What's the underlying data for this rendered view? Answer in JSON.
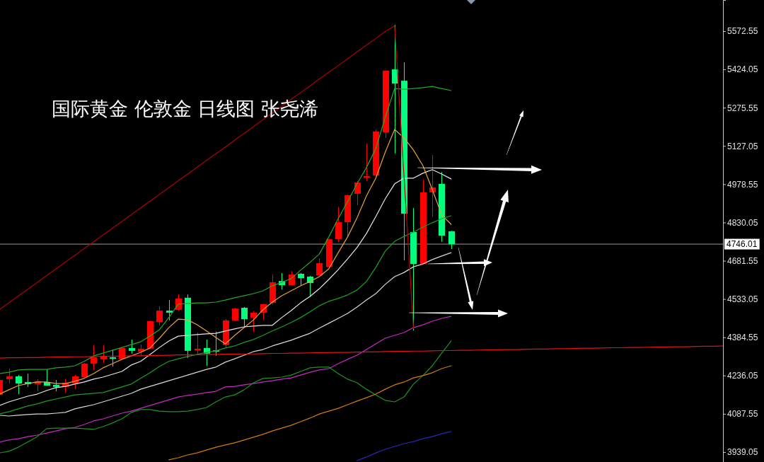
{
  "chart_data": {
    "type": "candlestick",
    "title": "国际黄金 伦敦金 日线图 张尧浠",
    "categories": [
      null,
      null,
      null,
      null,
      null,
      null,
      null,
      null,
      null,
      null,
      null,
      null,
      null,
      null,
      null,
      null,
      null,
      null,
      null,
      null,
      null,
      null,
      null,
      null,
      null,
      null,
      null,
      null,
      null,
      null,
      null,
      null,
      null,
      null,
      null,
      null,
      null,
      null,
      null,
      null,
      null,
      null,
      null,
      null,
      null,
      null,
      null,
      null,
      null,
      null,
      null,
      null,
      null,
      null,
      null,
      null,
      null,
      null,
      null,
      null,
      null,
      null,
      null,
      null,
      null,
      null,
      null,
      null,
      null,
      null,
      null,
      null,
      null,
      null,
      null,
      null,
      null,
      null
    ],
    "ohlc": [
      [
        4161,
        4225,
        4156,
        4219
      ],
      [
        4222,
        4263,
        4205,
        4233
      ],
      [
        4233,
        4238,
        4164,
        4205
      ],
      [
        4211,
        4244,
        4192,
        4203
      ],
      [
        4203,
        4222,
        4175,
        4214
      ],
      [
        4211,
        4260,
        4196,
        4197
      ],
      [
        4200,
        4219,
        4175,
        4192
      ],
      [
        4192,
        4222,
        4170,
        4208
      ],
      [
        4205,
        4238,
        4183,
        4233
      ],
      [
        4230,
        4285,
        4225,
        4282
      ],
      [
        4282,
        4354,
        4258,
        4307
      ],
      [
        4299,
        4354,
        4285,
        4310
      ],
      [
        4307,
        4337,
        4271,
        4301
      ],
      [
        4301,
        4345,
        4299,
        4343
      ],
      [
        4343,
        4376,
        4321,
        4332
      ],
      [
        4329,
        4356,
        4315,
        4340
      ],
      [
        4341,
        4450,
        4340,
        4447
      ],
      [
        4444,
        4505,
        4431,
        4488
      ],
      [
        4488,
        4529,
        4450,
        4480
      ],
      [
        4491,
        4551,
        4488,
        4535
      ],
      [
        4538,
        4551,
        4304,
        4332
      ],
      [
        4334,
        4403,
        4315,
        4340
      ],
      [
        4343,
        4376,
        4274,
        4321
      ],
      [
        4334,
        4406,
        4312,
        4329
      ],
      [
        4354,
        4455,
        4343,
        4450
      ],
      [
        4450,
        4499,
        4447,
        4496
      ],
      [
        4499,
        4502,
        4422,
        4455
      ],
      [
        4461,
        4485,
        4406,
        4480
      ],
      [
        4480,
        4516,
        4452,
        4513
      ],
      [
        4518,
        4628,
        4513,
        4598
      ],
      [
        4603,
        4634,
        4570,
        4587
      ],
      [
        4587,
        4642,
        4586,
        4628
      ],
      [
        4631,
        4634,
        4587,
        4614
      ],
      [
        4620,
        4623,
        4540,
        4595
      ],
      [
        4625,
        4691,
        4624,
        4672
      ],
      [
        4658,
        4768,
        4656,
        4765
      ],
      [
        4765,
        4889,
        4754,
        4831
      ],
      [
        4831,
        4938,
        4774,
        4936
      ],
      [
        4941,
        4991,
        4897,
        4985
      ],
      [
        5004,
        5136,
        4990,
        5010
      ],
      [
        5012,
        5191,
        5010,
        5183
      ],
      [
        5180,
        5422,
        5158,
        5419
      ],
      [
        5424,
        5597,
        5098,
        5369
      ],
      [
        5380,
        5452,
        4683,
        4864
      ],
      [
        4793,
        4886,
        4411,
        4669
      ],
      [
        4669,
        4996,
        4668,
        4947
      ],
      [
        4947,
        5092,
        4851,
        4966
      ],
      [
        4980,
        5026,
        4755,
        4779
      ],
      [
        4796,
        4798,
        4727,
        4746.01
      ],
      null,
      null,
      null,
      null,
      null,
      null,
      null,
      null,
      null,
      null,
      null,
      null,
      null,
      null,
      null,
      null,
      null,
      null,
      null,
      null,
      null,
      null,
      null,
      null,
      null,
      null,
      null,
      null,
      null
    ],
    "colors": [
      "#ff0000",
      "#ff0000",
      "#00ff7f",
      "#00ff7f",
      "#ff0000",
      "#00ff7f",
      "#00ff7f",
      "#ff0000",
      "#ff0000",
      "#ff0000",
      "#ff0000",
      "#ff0000",
      "#00ff7f",
      "#ff0000",
      "#00ff7f",
      "#ff0000",
      "#ff0000",
      "#ff0000",
      "#00ff7f",
      "#ff0000",
      "#00ff7f",
      "#ff0000",
      "#00ff7f",
      "#00ff7f",
      "#ff0000",
      "#ff0000",
      "#00ff7f",
      "#ff0000",
      "#ff0000",
      "#ff0000",
      "#00ff7f",
      "#ff0000",
      "#00ff7f",
      "#00ff7f",
      "#ff0000",
      "#ff0000",
      "#ff0000",
      "#ff0000",
      "#ff0000",
      "#ff0000",
      "#ff0000",
      "#ff0000",
      "#00ff7f",
      "#00ff7f",
      "#00ff7f",
      "#ff0000",
      "#ff0000",
      "#00ff7f",
      "#00ff7f",
      null,
      null,
      null,
      null,
      null,
      null,
      null,
      null,
      null,
      null,
      null,
      null,
      null,
      null,
      null,
      null,
      null,
      null,
      null,
      null,
      null,
      null,
      null,
      null,
      null,
      null,
      null,
      null,
      null
    ],
    "series": [
      {
        "type": "line",
        "color": "#22aa22",
        "values": [
          4244,
          4249,
          4258,
          4260,
          4260,
          4260,
          4266,
          4269,
          4274,
          4291,
          4312,
          4323,
          4334,
          4345,
          4356,
          4367,
          4389,
          4414,
          4461,
          4513,
          4516,
          4518,
          4518,
          4521,
          4529,
          4538,
          4546,
          4554,
          4565,
          4584,
          4598,
          4612,
          4645,
          4675,
          4708,
          4774,
          4845,
          4911,
          4980,
          5043,
          5117,
          5238,
          5350,
          5347,
          5350,
          5353,
          5358,
          5350,
          5342,
          null,
          null,
          null,
          null,
          null,
          null,
          null,
          null,
          null,
          null,
          null,
          null,
          null,
          null,
          null,
          null,
          null,
          null,
          null,
          null,
          null,
          null,
          null,
          null,
          null,
          null,
          null,
          null,
          null
        ]
      },
      {
        "type": "line",
        "color": "#e6a23c",
        "values": [
          4164,
          4181,
          4197,
          4205,
          4211,
          4211,
          4205,
          4205,
          4214,
          4225,
          4244,
          4266,
          4282,
          4299,
          4312,
          4326,
          4343,
          4381,
          4422,
          4455,
          4452,
          4433,
          4409,
          4384,
          4359,
          4392,
          4422,
          4452,
          4491,
          4521,
          4546,
          4565,
          4584,
          4601,
          4620,
          4650,
          4713,
          4774,
          4848,
          4933,
          5002,
          5103,
          5191,
          5158,
          5111,
          5051,
          4958,
          4859,
          4823,
          null,
          null,
          null,
          null,
          null,
          null,
          null,
          null,
          null,
          null,
          null,
          null,
          null,
          null,
          null,
          null,
          null,
          null,
          null,
          null,
          null,
          null,
          null,
          null,
          null,
          null,
          null,
          null,
          null
        ]
      },
      {
        "type": "line",
        "color": "#e8e8e8",
        "values": [
          4120,
          4134,
          4145,
          4156,
          4164,
          4178,
          4189,
          4194,
          4203,
          4211,
          4222,
          4230,
          4241,
          4252,
          4277,
          4291,
          4318,
          4345,
          4370,
          4389,
          4392,
          4395,
          4398,
          4400,
          4409,
          4417,
          4425,
          4428,
          4431,
          4431,
          4461,
          4488,
          4518,
          4543,
          4573,
          4609,
          4647,
          4689,
          4733,
          4787,
          4853,
          4922,
          4980,
          5002,
          5002,
          5021,
          5035,
          5018,
          4999,
          null,
          null,
          null,
          null,
          null,
          null,
          null,
          null,
          null,
          null,
          null,
          null,
          null,
          null,
          null,
          null,
          null,
          null,
          null,
          null,
          null,
          null,
          null,
          null,
          null,
          null,
          null,
          null,
          null
        ]
      },
      {
        "type": "line",
        "color": "#1e9e1e",
        "values": [
          4087,
          4096,
          4107,
          4118,
          4126,
          4137,
          4145,
          4153,
          4161,
          4164,
          4167,
          4170,
          4181,
          4192,
          4203,
          4225,
          4247,
          4271,
          4291,
          4301,
          4310,
          4318,
          4326,
          4332,
          4343,
          4351,
          4365,
          4376,
          4392,
          4409,
          4425,
          4442,
          4461,
          4483,
          4507,
          4524,
          4535,
          4549,
          4568,
          4601,
          4656,
          4719,
          4757,
          4776,
          4793,
          4812,
          4829,
          4845,
          4856,
          null,
          null,
          null,
          null,
          null,
          null,
          null,
          null,
          null,
          null,
          null,
          null,
          null,
          null,
          null,
          null,
          null,
          null,
          null,
          null,
          null,
          null,
          null,
          null,
          null,
          null,
          null,
          null,
          null
        ]
      },
      {
        "type": "line",
        "color": "#d8d8d8",
        "values": [
          4082,
          4079,
          4082,
          4085,
          4087,
          4087,
          4090,
          4093,
          4107,
          4115,
          4123,
          4134,
          4145,
          4156,
          4167,
          4183,
          4194,
          4205,
          4216,
          4227,
          4238,
          4249,
          4260,
          4269,
          4288,
          4301,
          4315,
          4329,
          4337,
          4351,
          4362,
          4373,
          4387,
          4400,
          4420,
          4439,
          4458,
          4477,
          4502,
          4529,
          4554,
          4590,
          4620,
          4636,
          4658,
          4669,
          4686,
          4700,
          4713,
          null,
          null,
          null,
          null,
          null,
          null,
          null,
          null,
          null,
          null,
          null,
          null,
          null,
          null,
          null,
          null,
          null,
          null,
          null,
          null,
          null,
          null,
          null,
          null,
          null,
          null,
          null,
          null,
          null
        ]
      },
      {
        "type": "line",
        "color": "#c828c8",
        "values": [
          3978,
          3986,
          3991,
          3999,
          4005,
          4013,
          4021,
          4030,
          4035,
          4046,
          4060,
          4068,
          4079,
          4090,
          4098,
          4109,
          4120,
          4131,
          4142,
          4153,
          4159,
          4164,
          4170,
          4175,
          4192,
          4194,
          4200,
          4205,
          4211,
          4216,
          4222,
          4227,
          4238,
          4249,
          4258,
          4263,
          4282,
          4299,
          4315,
          4337,
          4359,
          4381,
          4392,
          4403,
          4422,
          4433,
          4447,
          4458,
          4466,
          null,
          null,
          null,
          null,
          null,
          null,
          null,
          null,
          null,
          null,
          null,
          null,
          null,
          null,
          null,
          null,
          null,
          null,
          null,
          null,
          null,
          null,
          null,
          null,
          null,
          null,
          null,
          null,
          null
        ]
      },
      {
        "type": "line",
        "color": "#1c961c",
        "values": [
          3936,
          3942,
          3958,
          3978,
          3999,
          4030,
          4032,
          4032,
          4032,
          4030,
          4027,
          4038,
          4052,
          4068,
          4093,
          4104,
          4104,
          4098,
          4096,
          4096,
          4098,
          4104,
          4112,
          4134,
          4153,
          4161,
          4181,
          4208,
          4225,
          4227,
          4230,
          4238,
          4252,
          4266,
          4269,
          4269,
          4244,
          4222,
          4208,
          4183,
          4161,
          4140,
          4134,
          4153,
          4203,
          4236,
          4274,
          4323,
          4370,
          null,
          null,
          null,
          null,
          null,
          null,
          null,
          null,
          null,
          null,
          null,
          null,
          null,
          null,
          null,
          null,
          null,
          null,
          null,
          null,
          null,
          null,
          null,
          null,
          null,
          null,
          null,
          null,
          null
        ]
      },
      {
        "type": "line",
        "color": "#d27a10",
        "values": [
          null,
          null,
          null,
          null,
          null,
          null,
          null,
          null,
          null,
          null,
          null,
          null,
          null,
          null,
          null,
          null,
          null,
          null,
          3909,
          3917,
          3928,
          3936,
          3947,
          3958,
          3967,
          3975,
          3986,
          3997,
          4008,
          4021,
          4032,
          4043,
          4057,
          4071,
          4087,
          4098,
          4109,
          4123,
          4137,
          4150,
          4164,
          4183,
          4200,
          4211,
          4227,
          4236,
          4247,
          4263,
          4274,
          null,
          null,
          null,
          null,
          null,
          null,
          null,
          null,
          null,
          null,
          null,
          null,
          null,
          null,
          null,
          null,
          null,
          null,
          null,
          null,
          null,
          null,
          null,
          null,
          null,
          null,
          null,
          null,
          null
        ]
      },
      {
        "type": "line",
        "color": "#2828b4",
        "values": [
          null,
          null,
          null,
          null,
          null,
          null,
          null,
          null,
          null,
          null,
          null,
          null,
          null,
          null,
          null,
          null,
          null,
          null,
          null,
          null,
          null,
          null,
          null,
          null,
          null,
          null,
          null,
          null,
          null,
          null,
          null,
          null,
          null,
          null,
          null,
          null,
          null,
          null,
          3906,
          3920,
          3936,
          3950,
          3961,
          3972,
          3980,
          3991,
          3999,
          4010,
          4019,
          null,
          null,
          null,
          null,
          null,
          null,
          null,
          null,
          null,
          null,
          null,
          null,
          null,
          null,
          null,
          null,
          null,
          null,
          null,
          null,
          null,
          null,
          null,
          null,
          null,
          null,
          null,
          null,
          null
        ]
      },
      {
        "type": "line",
        "color": "#b00000",
        "values": [
          4492,
          4518,
          4545,
          4571,
          4597,
          4624,
          4650,
          4676,
          4702,
          4729,
          4755,
          4781,
          4808,
          4834,
          4860,
          4887,
          4913,
          4939,
          4966,
          4992,
          5018,
          5045,
          5071,
          5097,
          5123,
          5150,
          5176,
          5202,
          5229,
          5255,
          5281,
          5308,
          5334,
          5360,
          5387,
          5413,
          5439,
          5465,
          5492,
          5518,
          5544,
          5571,
          5593,
          null,
          null,
          null,
          null,
          null,
          null,
          null,
          null,
          null,
          null,
          null,
          null,
          null,
          null,
          null,
          null,
          null,
          null,
          null,
          null,
          null,
          null,
          null,
          null,
          null,
          null,
          null,
          null,
          null,
          null,
          null,
          null,
          null,
          null,
          null
        ]
      },
      {
        "type": "line",
        "color": "#c00000",
        "values": [
          null,
          null,
          null,
          null,
          null,
          null,
          null,
          null,
          null,
          null,
          null,
          null,
          null,
          null,
          null,
          null,
          null,
          null,
          null,
          null,
          null,
          null,
          null,
          null,
          null,
          null,
          null,
          null,
          null,
          null,
          null,
          null,
          null,
          null,
          null,
          null,
          null,
          null,
          null,
          null,
          null,
          null,
          5593,
          5006,
          4419,
          null,
          null,
          null,
          null,
          null,
          null,
          null,
          null,
          null,
          null,
          null,
          null,
          null,
          null,
          null,
          null,
          null,
          null,
          null,
          null,
          null,
          null,
          null,
          null,
          null,
          null,
          null,
          null,
          null,
          null,
          null,
          null,
          null
        ]
      },
      {
        "type": "line",
        "color": "#e81010",
        "values": [
          4304,
          4305,
          4305,
          4306,
          4306,
          4307,
          4308,
          4308,
          4309,
          4309,
          4310,
          4311,
          4311,
          4312,
          4313,
          4313,
          4314,
          4314,
          4315,
          4316,
          4316,
          4317,
          4317,
          4318,
          4319,
          4319,
          4320,
          4320,
          4321,
          4322,
          4322,
          4323,
          4323,
          4324,
          4325,
          4325,
          4326,
          4326,
          4327,
          4328,
          4328,
          4329,
          4330,
          4330,
          4331,
          4331,
          4332,
          4333,
          4333,
          4334,
          4334,
          4335,
          4336,
          4336,
          4337,
          4337,
          4338,
          4339,
          4339,
          4340,
          4340,
          4341,
          4342,
          4342,
          4343,
          4344,
          4344,
          4345,
          4345,
          4346,
          4347,
          4347,
          4348,
          4348,
          4349,
          4350,
          4350,
          4351
        ]
      }
    ],
    "ylim": [
      3900.6,
      5693.3
    ],
    "yticks": [
      3939.05,
      4087.55,
      4236.05,
      4384.55,
      4533.05,
      4681.55,
      4830.05,
      4978.55,
      5127.05,
      5275.55,
      5424.05,
      5572.55
    ],
    "ref_lines": [
      {
        "axis": "y",
        "value": 4746.01,
        "label": "4746.01",
        "color": "#9a9a9a"
      }
    ],
    "tick_labels": "y"
  }
}
